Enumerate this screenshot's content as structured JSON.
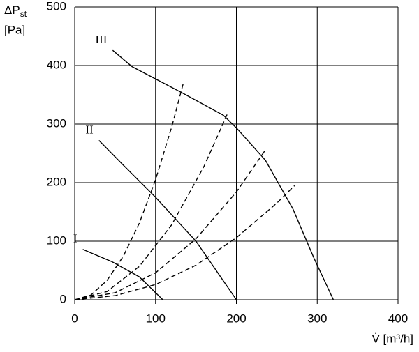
{
  "chart_data": {
    "type": "line",
    "y_label": {
      "symbol": "ΔP",
      "subscript": "st",
      "unit": "[Pa]"
    },
    "x_label": "V̇ [m³/h]",
    "xlim": [
      0,
      400
    ],
    "xticks": [
      0,
      100,
      200,
      300,
      400
    ],
    "ylim": [
      0,
      500
    ],
    "yticks": [
      0,
      100,
      200,
      300,
      400,
      500
    ],
    "grid": true,
    "series": [
      {
        "name": "III",
        "color": "#000000",
        "style": "solid",
        "x": [
          47,
          71,
          132,
          184,
          201,
          236,
          270,
          296,
          320
        ],
        "values": [
          426,
          398,
          354,
          315,
          292,
          238,
          155,
          71,
          0
        ]
      },
      {
        "name": "II",
        "color": "#000000",
        "style": "solid",
        "x": [
          30,
          60,
          100,
          150,
          200
        ],
        "values": [
          272,
          230,
          175,
          100,
          0
        ]
      },
      {
        "name": "I",
        "color": "#000000",
        "style": "solid",
        "x": [
          10,
          46,
          80,
          109
        ],
        "values": [
          86,
          65,
          39,
          0
        ]
      },
      {
        "color": "#000000",
        "style": "dashed",
        "x": [
          0,
          20,
          40,
          60,
          80,
          100,
          120,
          134
        ],
        "values": [
          0,
          8,
          33,
          74,
          131,
          205,
          295,
          368
        ]
      },
      {
        "color": "#000000",
        "style": "dashed",
        "x": [
          0,
          40,
          80,
          120,
          160,
          190
        ],
        "values": [
          0,
          14,
          57,
          128,
          228,
          321
        ]
      },
      {
        "color": "#000000",
        "style": "dashed",
        "x": [
          0,
          50,
          100,
          150,
          200,
          236
        ],
        "values": [
          0,
          12,
          46,
          104,
          184,
          256
        ]
      },
      {
        "color": "#000000",
        "style": "dashed",
        "x": [
          0,
          50,
          100,
          150,
          200,
          250,
          272
        ],
        "values": [
          0,
          7,
          26,
          59,
          106,
          165,
          195
        ]
      }
    ]
  }
}
